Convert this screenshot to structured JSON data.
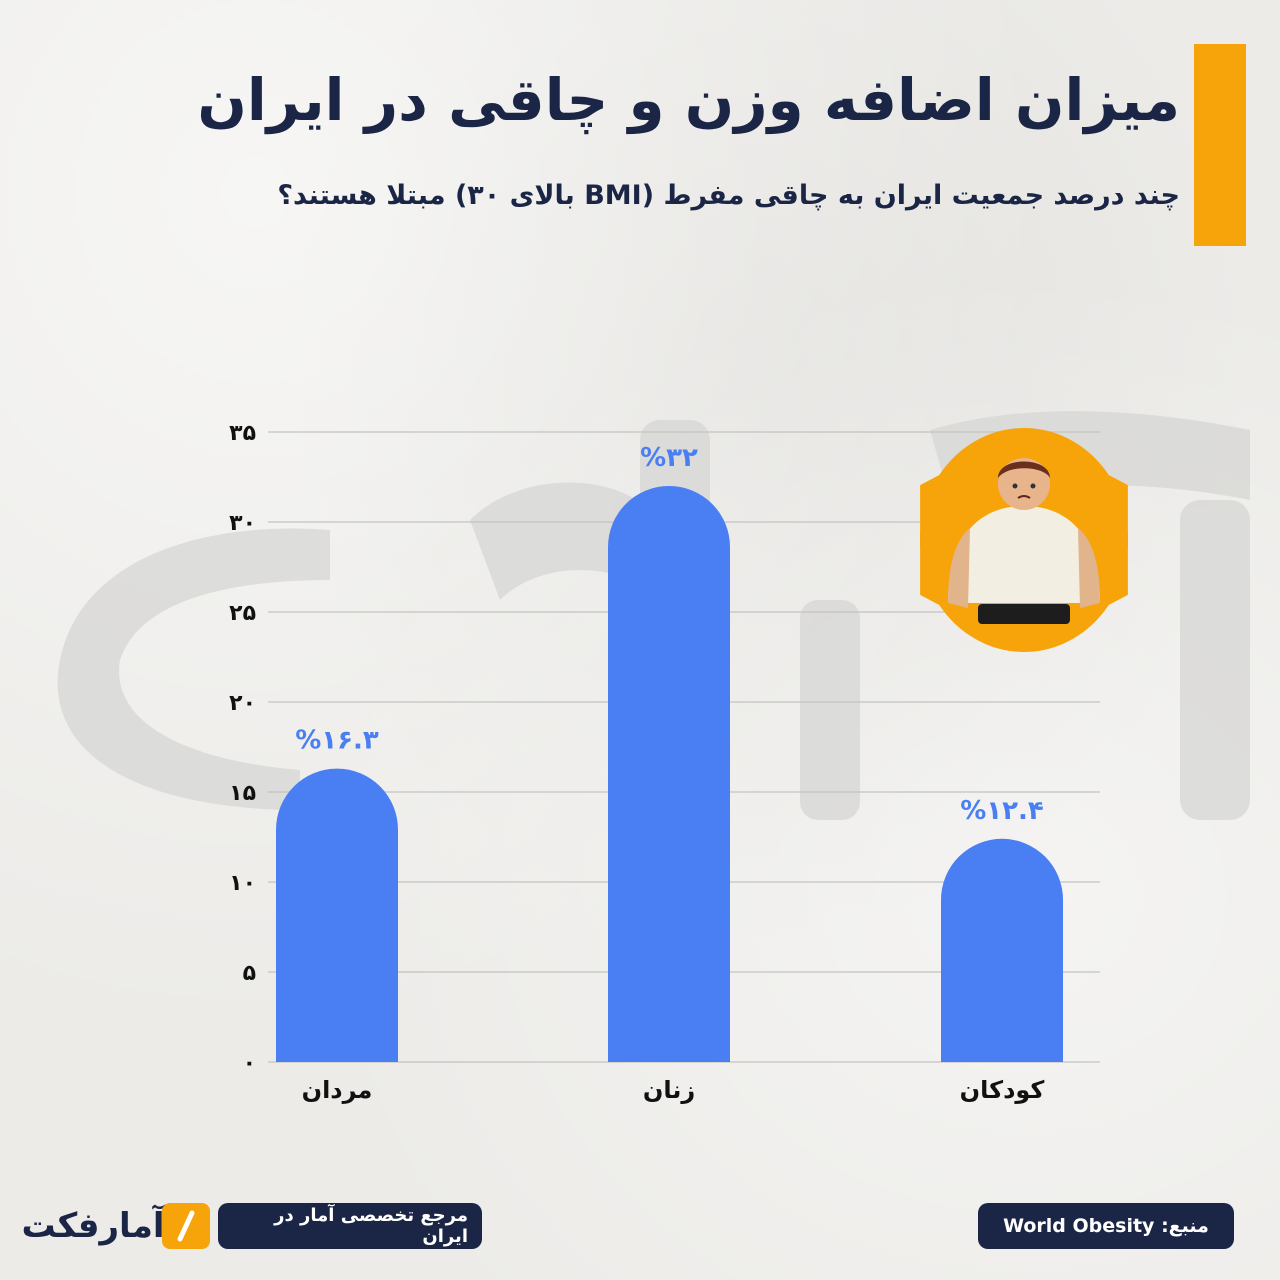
{
  "header": {
    "title": "میزان اضافه وزن و چاقی در ایران",
    "subtitle": "چند درصد جمعیت ایران به چاقی مفرط (BMI بالای ۳۰) مبتلا هستند؟"
  },
  "colors": {
    "accent": "#f7a30a",
    "bar": "#4a7ff3",
    "navy": "#1b2646"
  },
  "chart_data": {
    "type": "bar",
    "categories": [
      "مردان",
      "زنان",
      "کودکان"
    ],
    "values": [
      16.3,
      32,
      12.4
    ],
    "value_labels": [
      "%۱۶.۳",
      "%۳۲",
      "%۱۲.۴"
    ],
    "ylim": [
      0,
      35
    ],
    "yticks": [
      0,
      5,
      10,
      15,
      20,
      25,
      30,
      35
    ],
    "ytick_labels": [
      "۰",
      "۵",
      "۱۰",
      "۱۵",
      "۲۰",
      "۲۵",
      "۳۰",
      "۳۵"
    ],
    "grid": true,
    "title": "",
    "xlabel": "",
    "ylabel": ""
  },
  "badge": {
    "icon": "overweight-person-icon"
  },
  "footer": {
    "source": "منبع: World Obesity",
    "tagline": "مرجع تخصصی آمار در ایران",
    "logo_text": "آمارفکت",
    "logo_icon": "slash-mark-icon"
  }
}
